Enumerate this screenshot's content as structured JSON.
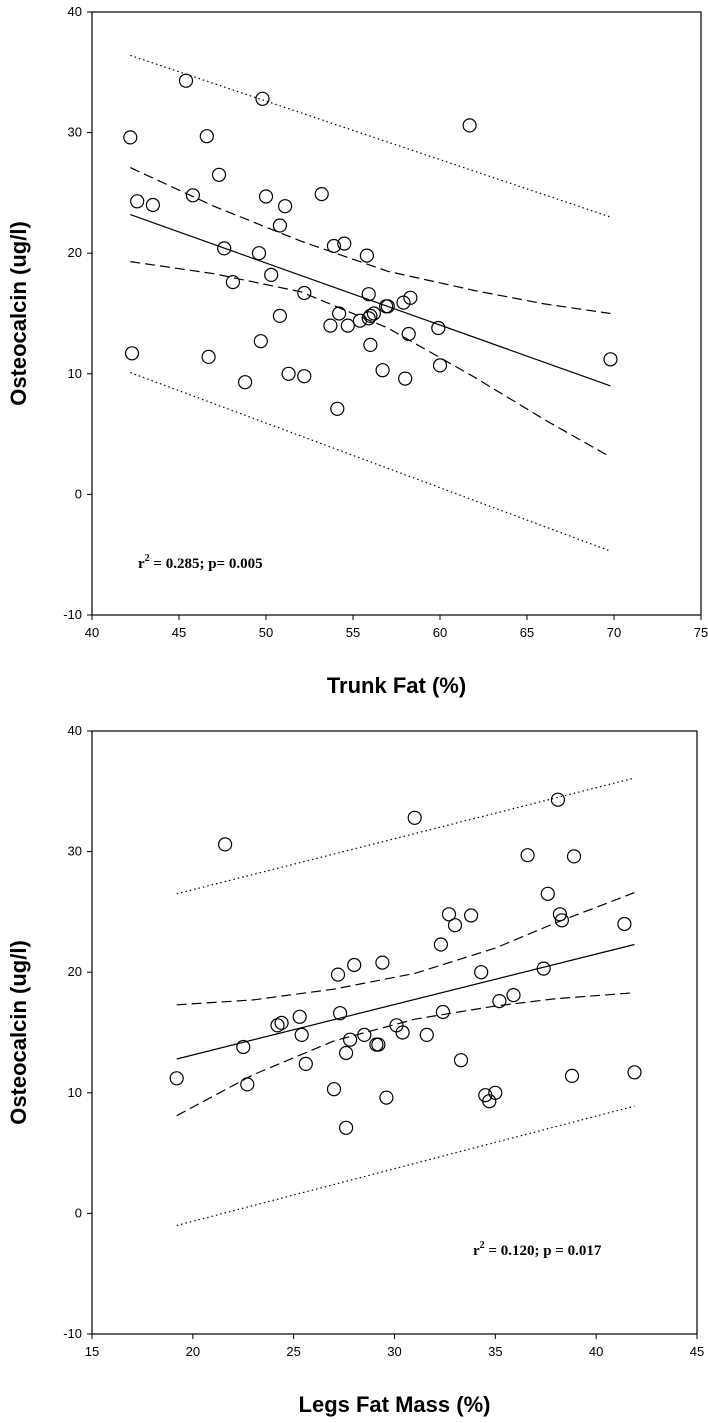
{
  "chart_data": [
    {
      "type": "scatter",
      "title": "",
      "xlabel": "Trunk Fat (%)",
      "ylabel": "Osteocalcin (ug/l)",
      "xlim": [
        40,
        75
      ],
      "ylim": [
        -10,
        40
      ],
      "xticks": [
        "40",
        "45",
        "50",
        "55",
        "60",
        "65",
        "70",
        "75"
      ],
      "yticks": [
        "-10",
        "0",
        "10",
        "20",
        "30",
        "40"
      ],
      "grid": false,
      "annotation": {
        "r2_prefix": "r",
        "r2_sup": "2",
        "rest": " = 0.285; p= 0.005"
      },
      "x": [
        42.2,
        42.3,
        42.6,
        43.5,
        45.4,
        45.8,
        46.6,
        46.7,
        47.3,
        47.6,
        48.1,
        48.8,
        49.6,
        49.7,
        49.8,
        50.0,
        50.3,
        50.8,
        50.8,
        51.1,
        51.3,
        52.2,
        52.2,
        53.2,
        53.7,
        53.9,
        54.1,
        54.2,
        54.5,
        54.7,
        55.4,
        55.8,
        55.9,
        55.9,
        56.0,
        56.0,
        56.2,
        56.7,
        56.9,
        57.0,
        57.9,
        58.0,
        58.2,
        58.3,
        59.9,
        60.0,
        61.7,
        69.8
      ],
      "y": [
        29.6,
        11.7,
        24.3,
        24.0,
        34.3,
        24.8,
        29.7,
        11.4,
        26.5,
        20.4,
        17.6,
        9.3,
        20.0,
        12.7,
        32.8,
        24.7,
        18.2,
        22.3,
        14.8,
        23.9,
        10.0,
        16.7,
        9.8,
        24.9,
        14.0,
        20.6,
        7.1,
        15.0,
        20.8,
        14.0,
        14.4,
        19.8,
        16.6,
        14.6,
        12.4,
        14.8,
        15.0,
        10.3,
        15.6,
        15.6,
        15.9,
        9.6,
        13.3,
        16.3,
        13.8,
        10.7,
        30.6,
        11.2
      ],
      "regression_line": {
        "x": [
          42.2,
          69.8
        ],
        "y": [
          23.2,
          9.0
        ]
      },
      "confidence_upper": {
        "x": [
          42.2,
          47,
          52,
          57,
          62,
          66,
          69.8
        ],
        "y": [
          27.1,
          23.9,
          21.0,
          18.5,
          16.9,
          15.8,
          15.0
        ]
      },
      "confidence_lower": {
        "x": [
          42.2,
          47,
          52,
          57,
          62,
          66,
          69.8
        ],
        "y": [
          19.3,
          18.3,
          16.8,
          13.8,
          9.7,
          6.2,
          3.1
        ]
      },
      "prediction_upper": {
        "x": [
          42.2,
          69.8
        ],
        "y": [
          36.4,
          23.0
        ]
      },
      "prediction_lower": {
        "x": [
          42.2,
          69.8
        ],
        "y": [
          10.1,
          -4.7
        ]
      }
    },
    {
      "type": "scatter",
      "title": "",
      "xlabel": "Legs Fat Mass (%)",
      "ylabel": "Osteocalcin (ug/l)",
      "xlim": [
        15,
        45
      ],
      "ylim": [
        -10,
        40
      ],
      "xticks": [
        "15",
        "20",
        "25",
        "30",
        "35",
        "40",
        "45"
      ],
      "yticks": [
        "-10",
        "0",
        "10",
        "20",
        "30",
        "40"
      ],
      "grid": false,
      "annotation": {
        "r2_prefix": "r",
        "r2_sup": "2",
        "rest": " = 0.120; p = 0.017"
      },
      "x": [
        19.2,
        21.6,
        22.5,
        22.7,
        24.2,
        24.4,
        25.3,
        25.4,
        25.6,
        27.0,
        27.2,
        27.3,
        27.6,
        27.6,
        27.8,
        28.0,
        28.5,
        29.1,
        29.2,
        29.4,
        29.6,
        30.1,
        30.4,
        31.0,
        31.6,
        32.3,
        32.4,
        32.7,
        33.0,
        33.3,
        33.8,
        34.3,
        34.5,
        34.7,
        35.0,
        35.2,
        35.9,
        36.6,
        37.4,
        37.6,
        38.1,
        38.2,
        38.3,
        38.8,
        38.9,
        41.4,
        41.9
      ],
      "y": [
        11.2,
        30.6,
        13.8,
        10.7,
        15.6,
        15.8,
        16.3,
        14.8,
        12.4,
        10.3,
        19.8,
        16.6,
        13.3,
        7.1,
        14.4,
        20.6,
        14.8,
        14.0,
        14.0,
        20.8,
        9.6,
        15.6,
        15.0,
        32.8,
        14.8,
        22.3,
        16.7,
        24.8,
        23.9,
        12.7,
        24.7,
        20.0,
        9.8,
        9.3,
        10.0,
        17.6,
        18.1,
        29.7,
        20.3,
        26.5,
        34.3,
        24.8,
        24.3,
        11.4,
        29.6,
        24.0,
        11.7
      ],
      "regression_line": {
        "x": [
          19.2,
          41.9
        ],
        "y": [
          12.8,
          22.3
        ]
      },
      "confidence_upper": {
        "x": [
          19.2,
          23,
          27,
          31,
          35,
          38,
          41.9
        ],
        "y": [
          17.3,
          17.7,
          18.6,
          19.9,
          22.0,
          24.1,
          26.6
        ]
      },
      "confidence_lower": {
        "x": [
          19.2,
          23,
          27,
          31,
          35,
          38,
          41.9
        ],
        "y": [
          8.1,
          11.5,
          14.3,
          16.1,
          17.2,
          17.8,
          18.3
        ]
      },
      "prediction_upper": {
        "x": [
          19.2,
          41.9
        ],
        "y": [
          26.5,
          36.1
        ]
      },
      "prediction_lower": {
        "x": [
          19.2,
          41.9
        ],
        "y": [
          -1.0,
          8.9
        ]
      }
    }
  ]
}
